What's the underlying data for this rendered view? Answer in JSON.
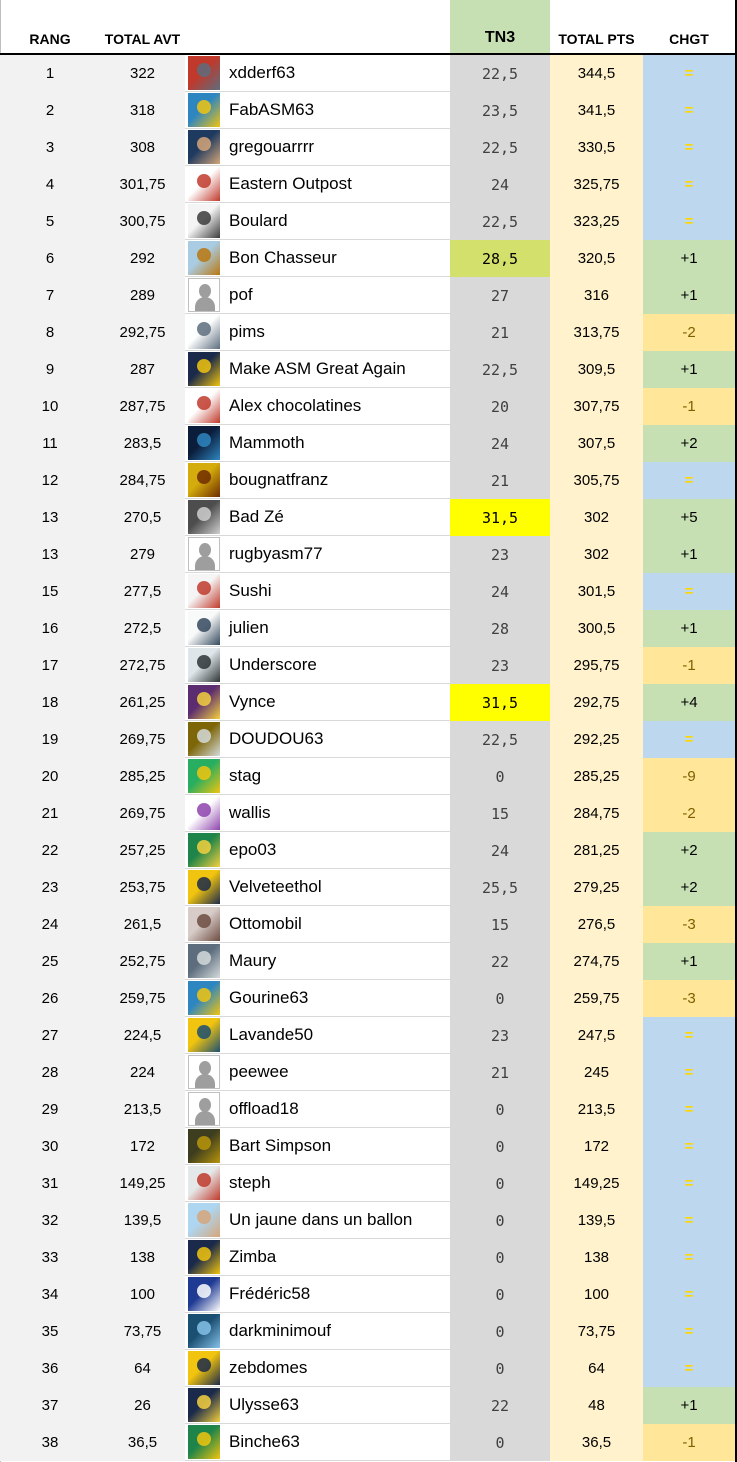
{
  "headers": {
    "rang": "RANG",
    "total_avt": "TOTAL AVT",
    "tn3": "TN3",
    "total_pts": "TOTAL PTS",
    "chgt": "CHGT"
  },
  "colors": {
    "tn3_header": "#c6e0b4",
    "tn3_column": "#d9d9d9",
    "total_pts_column": "#fff2cc",
    "chgt_neutral": "#bdd7ee",
    "chgt_up": "#c6e0b4",
    "chgt_down": "#ffe699",
    "highlight_yellow": "#ffff00",
    "highlight_green": "#d4e06c"
  },
  "rows": [
    {
      "rang": "1",
      "avt": "322",
      "name": "xdderf63",
      "tn3": "22,5",
      "total": "344,5",
      "chgt": "=",
      "trend": "eq",
      "avatar": [
        "#c0392b",
        "#5d6d7e"
      ],
      "icon": "avatar-photo-icon"
    },
    {
      "rang": "2",
      "avt": "318",
      "name": "FabASM63",
      "tn3": "23,5",
      "total": "341,5",
      "chgt": "=",
      "trend": "eq",
      "avatar": [
        "#2e86c1",
        "#f1c40f"
      ],
      "icon": "avatar-photo-icon"
    },
    {
      "rang": "3",
      "avt": "308",
      "name": "gregouarrrr",
      "tn3": "22,5",
      "total": "330,5",
      "chgt": "=",
      "trend": "eq",
      "avatar": [
        "#1f3a5f",
        "#d5a67a"
      ],
      "icon": "avatar-photo-icon"
    },
    {
      "rang": "4",
      "avt": "301,75",
      "name": "Eastern Outpost",
      "tn3": "24",
      "total": "325,75",
      "chgt": "=",
      "trend": "eq",
      "avatar": [
        "#ffffff",
        "#c0392b"
      ],
      "icon": "avatar-logo-icon"
    },
    {
      "rang": "5",
      "avt": "300,75",
      "name": "Boulard",
      "tn3": "22,5",
      "total": "323,25",
      "chgt": "=",
      "trend": "eq",
      "avatar": [
        "#f4f4f4",
        "#3b3b3b"
      ],
      "icon": "avatar-photo-icon"
    },
    {
      "rang": "6",
      "avt": "292",
      "name": "Bon Chasseur",
      "tn3": "28,5",
      "total": "320,5",
      "chgt": "+1",
      "trend": "up",
      "hl": "g",
      "avatar": [
        "#a9cce3",
        "#b9770e"
      ],
      "icon": "avatar-photo-icon"
    },
    {
      "rang": "7",
      "avt": "289",
      "name": "pof",
      "tn3": "27",
      "total": "316",
      "chgt": "+1",
      "trend": "up",
      "avatar": "default",
      "icon": "default-avatar-icon"
    },
    {
      "rang": "8",
      "avt": "292,75",
      "name": "pims",
      "tn3": "21",
      "total": "313,75",
      "chgt": "-2",
      "trend": "down",
      "avatar": [
        "#fdfefe",
        "#5d6d7e"
      ],
      "icon": "avatar-drawing-icon"
    },
    {
      "rang": "9",
      "avt": "287",
      "name": "Make ASM Great Again",
      "tn3": "22,5",
      "total": "309,5",
      "chgt": "+1",
      "trend": "up",
      "avatar": [
        "#1b2a4a",
        "#f1c40f"
      ],
      "icon": "avatar-photo-icon"
    },
    {
      "rang": "10",
      "avt": "287,75",
      "name": "Alex chocolatines",
      "tn3": "20",
      "total": "307,75",
      "chgt": "-1",
      "trend": "down",
      "avatar": [
        "#ffffff",
        "#c0392b"
      ],
      "icon": "avatar-logo-icon"
    },
    {
      "rang": "11",
      "avt": "283,5",
      "name": "Mammoth",
      "tn3": "24",
      "total": "307,5",
      "chgt": "+2",
      "trend": "up",
      "avatar": [
        "#0b1d3a",
        "#2e86c1"
      ],
      "icon": "avatar-photo-icon"
    },
    {
      "rang": "12",
      "avt": "284,75",
      "name": "bougnatfranz",
      "tn3": "21",
      "total": "305,75",
      "chgt": "=",
      "trend": "eq",
      "avatar": [
        "#d4ac0d",
        "#6e2c00"
      ],
      "icon": "avatar-photo-icon"
    },
    {
      "rang": "13",
      "avt": "270,5",
      "name": "Bad Zé",
      "tn3": "31,5",
      "total": "302",
      "chgt": "+5",
      "trend": "up",
      "hl": "y",
      "avatar": [
        "#4d4d4d",
        "#cfcfcf"
      ],
      "icon": "avatar-photo-icon"
    },
    {
      "rang": "13",
      "avt": "279",
      "name": "rugbyasm77",
      "tn3": "23",
      "total": "302",
      "chgt": "+1",
      "trend": "up",
      "avatar": "default",
      "icon": "default-avatar-icon"
    },
    {
      "rang": "15",
      "avt": "277,5",
      "name": "Sushi",
      "tn3": "24",
      "total": "301,5",
      "chgt": "=",
      "trend": "eq",
      "avatar": [
        "#f5f5f5",
        "#c0392b"
      ],
      "icon": "avatar-drawing-icon"
    },
    {
      "rang": "16",
      "avt": "272,5",
      "name": "julien",
      "tn3": "28",
      "total": "300,5",
      "chgt": "+1",
      "trend": "up",
      "avatar": [
        "#f8f9f9",
        "#34495e"
      ],
      "icon": "avatar-drawing-icon"
    },
    {
      "rang": "17",
      "avt": "272,75",
      "name": "Underscore",
      "tn3": "23",
      "total": "295,75",
      "chgt": "-1",
      "trend": "down",
      "avatar": [
        "#dfe6e9",
        "#2d3436"
      ],
      "icon": "avatar-photo-icon"
    },
    {
      "rang": "18",
      "avt": "261,25",
      "name": "Vynce",
      "tn3": "31,5",
      "total": "292,75",
      "chgt": "+4",
      "trend": "up",
      "hl": "y",
      "avatar": [
        "#5b2c6f",
        "#f4d03f"
      ],
      "icon": "avatar-photo-icon"
    },
    {
      "rang": "19",
      "avt": "269,75",
      "name": "DOUDOU63",
      "tn3": "22,5",
      "total": "292,25",
      "chgt": "=",
      "trend": "eq",
      "avatar": [
        "#7d6608",
        "#d5dbdb"
      ],
      "icon": "avatar-photo-icon"
    },
    {
      "rang": "20",
      "avt": "285,25",
      "name": "stag",
      "tn3": "0",
      "total": "285,25",
      "chgt": "-9",
      "trend": "down",
      "avatar": [
        "#27ae60",
        "#f1c40f"
      ],
      "icon": "avatar-photo-icon"
    },
    {
      "rang": "21",
      "avt": "269,75",
      "name": "wallis",
      "tn3": "15",
      "total": "284,75",
      "chgt": "-2",
      "trend": "down",
      "avatar": [
        "#ffffff",
        "#8e44ad"
      ],
      "icon": "avatar-text-icon"
    },
    {
      "rang": "22",
      "avt": "257,25",
      "name": "epo03",
      "tn3": "24",
      "total": "281,25",
      "chgt": "+2",
      "trend": "up",
      "avatar": [
        "#1e8449",
        "#f4d03f"
      ],
      "icon": "avatar-photo-icon"
    },
    {
      "rang": "23",
      "avt": "253,75",
      "name": "Velveteethol",
      "tn3": "25,5",
      "total": "279,25",
      "chgt": "+2",
      "trend": "up",
      "avatar": [
        "#f1c40f",
        "#1b2a4a"
      ],
      "icon": "avatar-logo-icon"
    },
    {
      "rang": "24",
      "avt": "261,5",
      "name": "Ottomobil",
      "tn3": "15",
      "total": "276,5",
      "chgt": "-3",
      "trend": "down",
      "avatar": [
        "#d7ccc8",
        "#6d4c41"
      ],
      "icon": "avatar-photo-icon"
    },
    {
      "rang": "25",
      "avt": "252,75",
      "name": "Maury",
      "tn3": "22",
      "total": "274,75",
      "chgt": "+1",
      "trend": "up",
      "avatar": [
        "#5d6d7e",
        "#d5dbdb"
      ],
      "icon": "avatar-photo-icon"
    },
    {
      "rang": "26",
      "avt": "259,75",
      "name": "Gourine63",
      "tn3": "0",
      "total": "259,75",
      "chgt": "-3",
      "trend": "down",
      "avatar": [
        "#2e86c1",
        "#f1c40f"
      ],
      "icon": "avatar-photo-icon"
    },
    {
      "rang": "27",
      "avt": "224,5",
      "name": "Lavande50",
      "tn3": "23",
      "total": "247,5",
      "chgt": "=",
      "trend": "eq",
      "avatar": [
        "#f1c40f",
        "#1b4f72"
      ],
      "icon": "avatar-photo-icon"
    },
    {
      "rang": "28",
      "avt": "224",
      "name": "peewee",
      "tn3": "21",
      "total": "245",
      "chgt": "=",
      "trend": "eq",
      "avatar": "default",
      "icon": "default-avatar-icon"
    },
    {
      "rang": "29",
      "avt": "213,5",
      "name": "offload18",
      "tn3": "0",
      "total": "213,5",
      "chgt": "=",
      "trend": "eq",
      "avatar": "default",
      "icon": "default-avatar-icon"
    },
    {
      "rang": "30",
      "avt": "172",
      "name": "Bart Simpson",
      "tn3": "0",
      "total": "172",
      "chgt": "=",
      "trend": "eq",
      "avatar": [
        "#3d3d1f",
        "#b7950b"
      ],
      "icon": "avatar-photo-icon"
    },
    {
      "rang": "31",
      "avt": "149,25",
      "name": "steph",
      "tn3": "0",
      "total": "149,25",
      "chgt": "=",
      "trend": "eq",
      "avatar": [
        "#e5e8e8",
        "#c0392b"
      ],
      "icon": "avatar-photo-icon"
    },
    {
      "rang": "32",
      "avt": "139,5",
      "name": "Un jaune dans un ballon",
      "tn3": "0",
      "total": "139,5",
      "chgt": "=",
      "trend": "eq",
      "avatar": [
        "#aed6f1",
        "#d5a67a"
      ],
      "icon": "avatar-photo-icon"
    },
    {
      "rang": "33",
      "avt": "138",
      "name": "Zimba",
      "tn3": "0",
      "total": "138",
      "chgt": "=",
      "trend": "eq",
      "avatar": [
        "#1b2a4a",
        "#f1c40f"
      ],
      "icon": "avatar-logo-icon"
    },
    {
      "rang": "34",
      "avt": "100",
      "name": "Frédéric58",
      "tn3": "0",
      "total": "100",
      "chgt": "=",
      "trend": "eq",
      "avatar": [
        "#1f3a93",
        "#ffffff"
      ],
      "icon": "avatar-logo-icon"
    },
    {
      "rang": "35",
      "avt": "73,75",
      "name": "darkminimouf",
      "tn3": "0",
      "total": "73,75",
      "chgt": "=",
      "trend": "eq",
      "avatar": [
        "#1b4f72",
        "#85c1e9"
      ],
      "icon": "avatar-photo-icon"
    },
    {
      "rang": "36",
      "avt": "64",
      "name": "zebdomes",
      "tn3": "0",
      "total": "64",
      "chgt": "=",
      "trend": "eq",
      "avatar": [
        "#f1c40f",
        "#1b2a4a"
      ],
      "icon": "avatar-photo-icon"
    },
    {
      "rang": "37",
      "avt": "26",
      "name": "Ulysse63",
      "tn3": "22",
      "total": "48",
      "chgt": "+1",
      "trend": "up",
      "avatar": [
        "#1b2a4a",
        "#f4d03f"
      ],
      "icon": "avatar-logo-icon"
    },
    {
      "rang": "38",
      "avt": "36,5",
      "name": "Binche63",
      "tn3": "0",
      "total": "36,5",
      "chgt": "-1",
      "trend": "down",
      "avatar": [
        "#1e8449",
        "#f1c40f"
      ],
      "icon": "avatar-photo-icon"
    }
  ]
}
